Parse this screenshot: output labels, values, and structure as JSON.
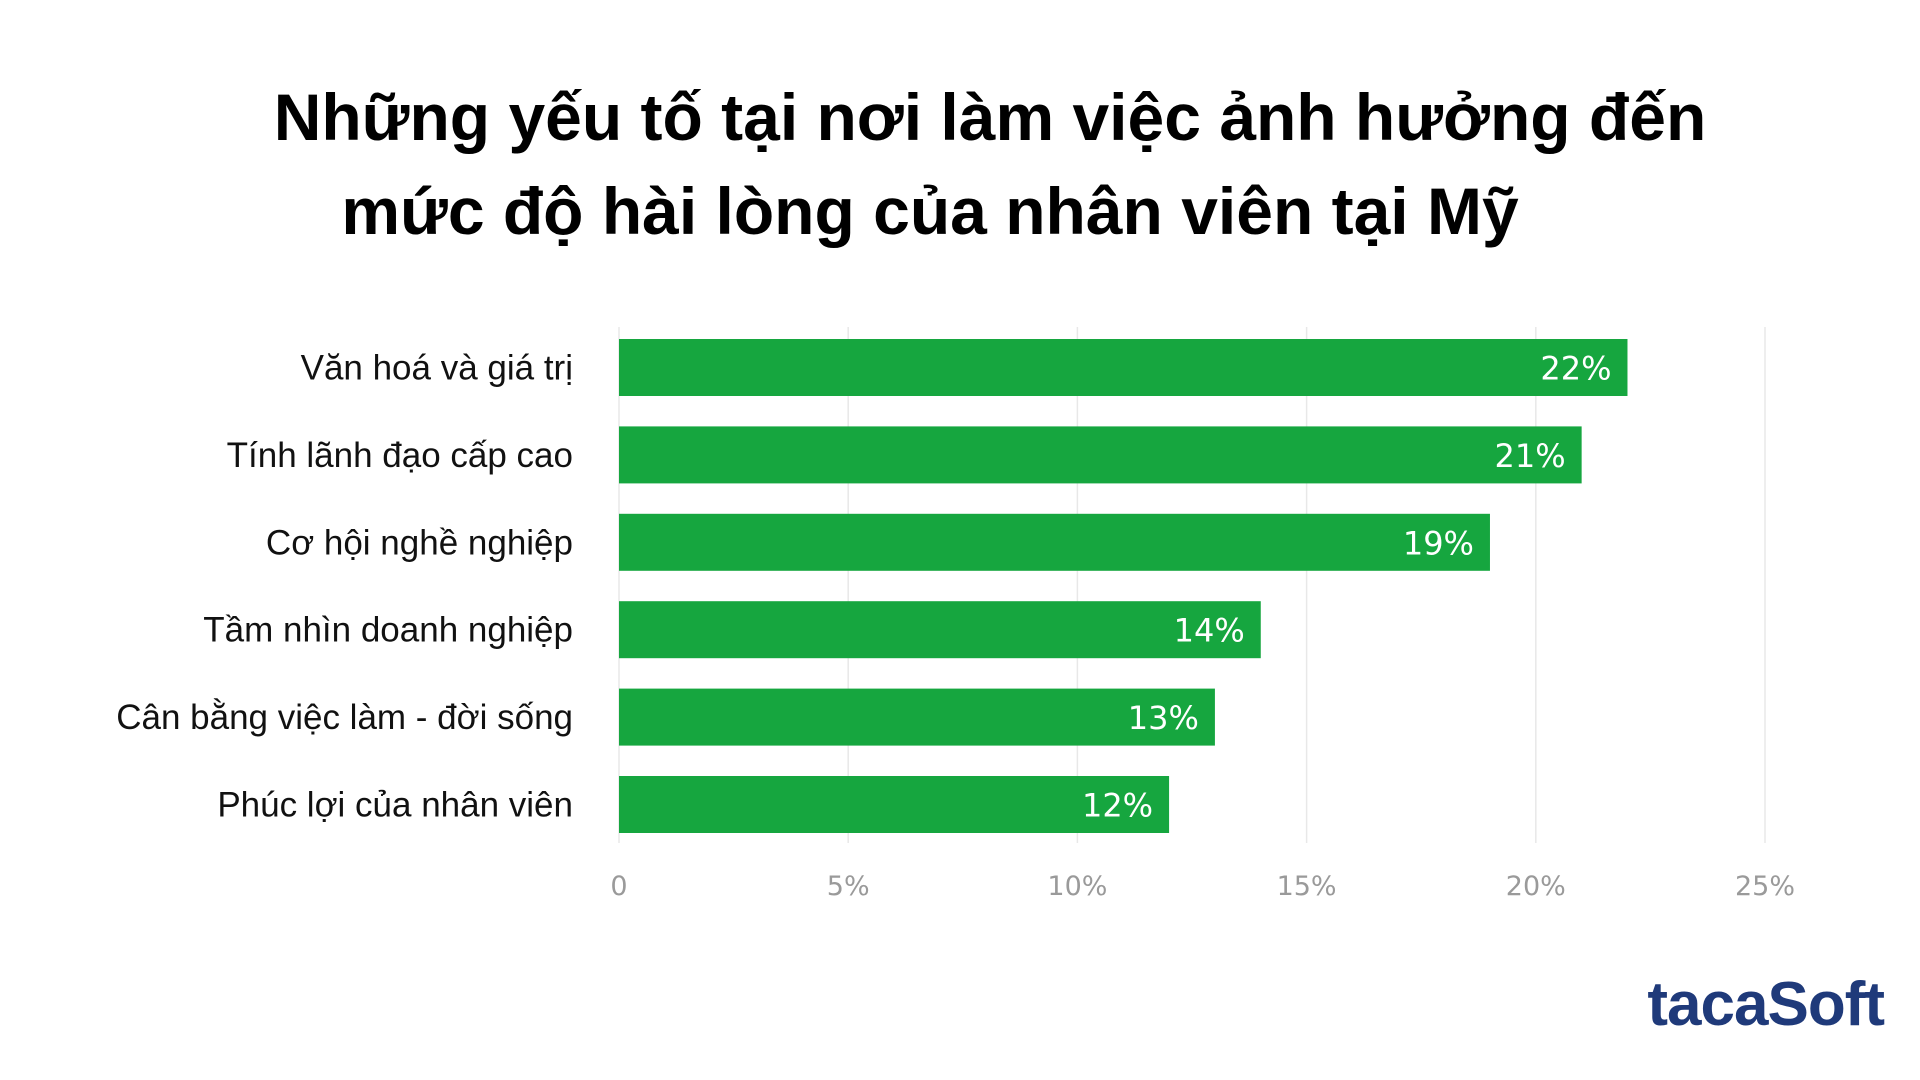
{
  "chart_data": {
    "type": "bar",
    "orientation": "horizontal",
    "title": "Những yếu tố tại nơi làm việc ảnh hưởng đến mức độ hài lòng của nhân viên tại Mỹ",
    "title_lines": [
      "Những yếu tố tại nơi làm việc ảnh hưởng đến",
      "mức độ hài lòng của nhân viên tại Mỹ"
    ],
    "categories": [
      "Văn hoá và giá trị",
      "Tính lãnh đạo cấp cao",
      "Cơ hội nghề nghiệp",
      "Tầm nhìn doanh nghiệp",
      "Cân bằng việc làm - đời sống",
      "Phúc lợi của nhân viên"
    ],
    "values": [
      22,
      21,
      19,
      14,
      13,
      12
    ],
    "data_labels": [
      "22%",
      "21%",
      "19%",
      "14%",
      "13%",
      "12%"
    ],
    "x_ticks": [
      0,
      5,
      10,
      15,
      20,
      25
    ],
    "x_tick_labels": [
      "0",
      "5%",
      "10%",
      "15%",
      "20%",
      "25%"
    ],
    "xlim": [
      0,
      25
    ],
    "xlabel": "",
    "ylabel": "",
    "grid": true,
    "legend": "none",
    "bar_color": "#16a63f",
    "label_color": "#ffffff",
    "tick_color": "#9a9a9a"
  },
  "brand": {
    "logo_text_1": "taca",
    "logo_text_2": "Soft",
    "logo_color": "#1f3a7a"
  }
}
